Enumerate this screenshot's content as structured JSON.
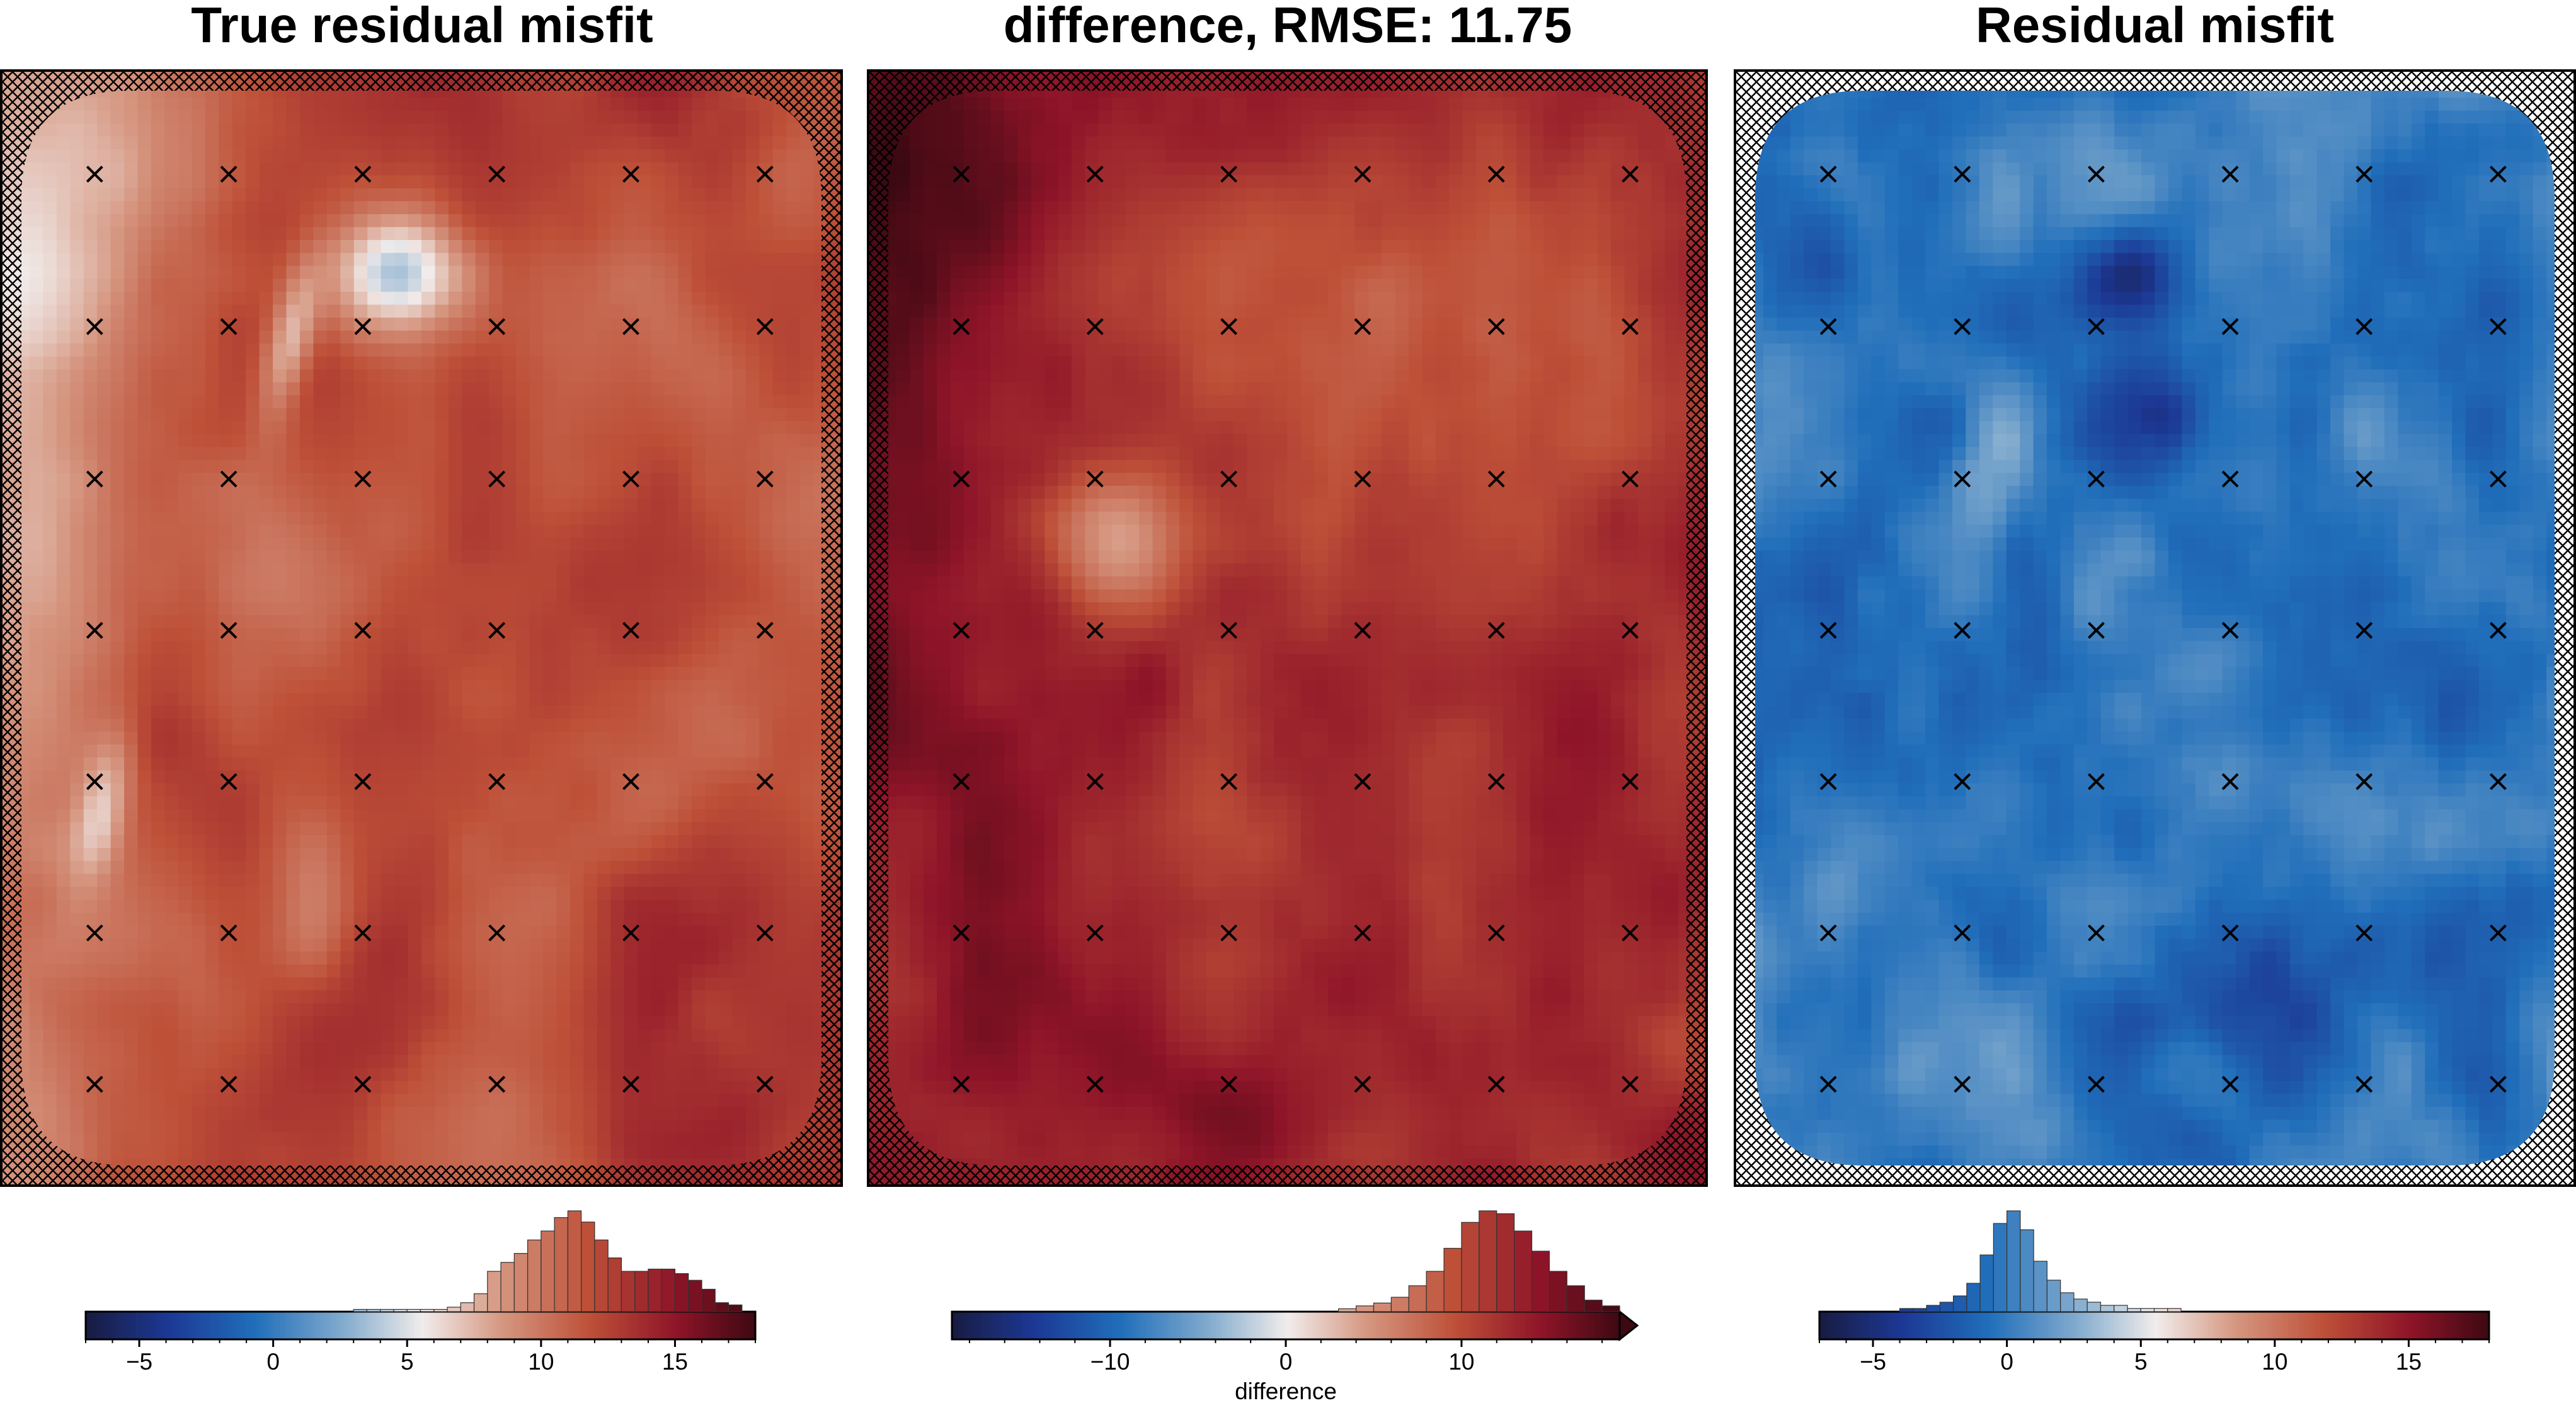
{
  "figure": {
    "panels": [
      {
        "title": "True residual misfit",
        "colormap": "balance",
        "field": "true_residual"
      },
      {
        "title": "difference, RMSE: 11.75",
        "colormap": "balance",
        "field": "difference",
        "colorbar_label": "difference"
      },
      {
        "title": "Residual misfit",
        "colormap": "balance",
        "field": "residual"
      }
    ]
  },
  "chart_data": [
    {
      "type": "heatmap",
      "title": "True residual misfit",
      "colorbar": {
        "range": [
          -7,
          18
        ],
        "ticks": [
          -5,
          0,
          5,
          10,
          15
        ],
        "tick_labels": [
          "−5",
          "0",
          "5",
          "10",
          "15"
        ],
        "label": ""
      },
      "histogram": {
        "bin_centers": [
          3.25,
          3.75,
          4.25,
          4.75,
          5.25,
          5.75,
          6.25,
          6.75,
          7.25,
          7.75,
          8.25,
          8.75,
          9.25,
          9.75,
          10.25,
          10.75,
          11.25,
          11.75,
          12.25,
          12.75,
          13.25,
          13.75,
          14.25,
          14.75,
          15.25,
          15.75,
          16.25,
          16.75,
          17.25
        ],
        "counts": [
          1,
          1,
          1,
          1,
          1,
          1,
          1,
          2,
          4,
          8,
          18,
          22,
          26,
          32,
          36,
          42,
          45,
          40,
          32,
          24,
          18,
          18,
          19,
          19,
          17,
          14,
          10,
          4,
          3
        ]
      },
      "station_grid": {
        "columns": 6,
        "rows": 7,
        "marker": "×"
      }
    },
    {
      "type": "heatmap",
      "title": "difference, RMSE: 11.75",
      "colorbar": {
        "range": [
          -19,
          19
        ],
        "ticks": [
          -10,
          0,
          10
        ],
        "tick_labels": [
          "−10",
          "0",
          "10"
        ],
        "label": "difference",
        "extend": "max"
      },
      "histogram": {
        "bin_centers": [
          3.5,
          4.5,
          5.5,
          6.5,
          7.5,
          8.5,
          9.5,
          10.5,
          11.5,
          12.5,
          13.5,
          14.5,
          15.5,
          16.5,
          17.5,
          18.5
        ],
        "counts": [
          1,
          2,
          3,
          5,
          9,
          14,
          22,
          31,
          35,
          34,
          28,
          21,
          14,
          9,
          4,
          2
        ]
      },
      "station_grid": {
        "columns": 6,
        "rows": 7,
        "marker": "×"
      }
    },
    {
      "type": "heatmap",
      "title": "Residual misfit",
      "colorbar": {
        "range": [
          -7,
          18
        ],
        "ticks": [
          -5,
          0,
          5,
          10,
          15
        ],
        "tick_labels": [
          "−5",
          "0",
          "5",
          "10",
          "15"
        ],
        "label": ""
      },
      "histogram": {
        "bin_centers": [
          -3.75,
          -3.25,
          -2.75,
          -2.25,
          -1.75,
          -1.25,
          -0.75,
          -0.25,
          0.25,
          0.75,
          1.25,
          1.75,
          2.25,
          2.75,
          3.25,
          3.75,
          4.25,
          4.75,
          5.25,
          5.75,
          6.25
        ],
        "counts": [
          1,
          1,
          2,
          3,
          5,
          9,
          18,
          28,
          32,
          26,
          16,
          10,
          6,
          4,
          3,
          2,
          2,
          1,
          1,
          1,
          1
        ],
        "note": "pale blue/red histogram centred at 0"
      },
      "station_grid": {
        "columns": 6,
        "rows": 7,
        "marker": "×"
      }
    }
  ]
}
